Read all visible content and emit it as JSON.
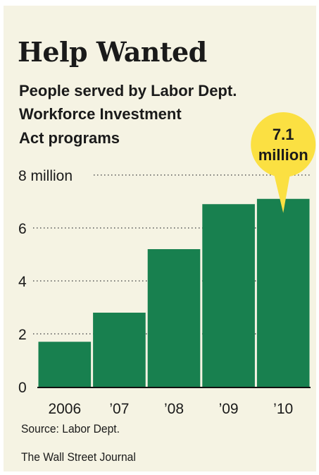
{
  "header": {
    "title": "Help Wanted",
    "subtitle_lines": [
      "People served by Labor Dept.",
      "Workforce Investment",
      "Act programs"
    ]
  },
  "footer": {
    "source": "Source: Labor Dept.",
    "publisher": "The Wall Street Journal"
  },
  "colors": {
    "bar": "#18804f",
    "callout": "#fbe042",
    "background": "#f5f3e3"
  },
  "chart_data": {
    "type": "bar",
    "categories": [
      "2006",
      "’07",
      "’08",
      "’09",
      "’10"
    ],
    "values": [
      1.7,
      2.8,
      5.2,
      6.9,
      7.1
    ],
    "ylim": [
      0,
      8
    ],
    "y_ticks": [
      {
        "value": 0,
        "label": "0"
      },
      {
        "value": 2,
        "label": "2"
      },
      {
        "value": 4,
        "label": "4"
      },
      {
        "value": 6,
        "label": "6"
      },
      {
        "value": 8,
        "label": "8 million"
      }
    ],
    "grid": "dotted",
    "annotation": {
      "category": "’10",
      "lines": [
        "7.1",
        "million"
      ]
    }
  }
}
